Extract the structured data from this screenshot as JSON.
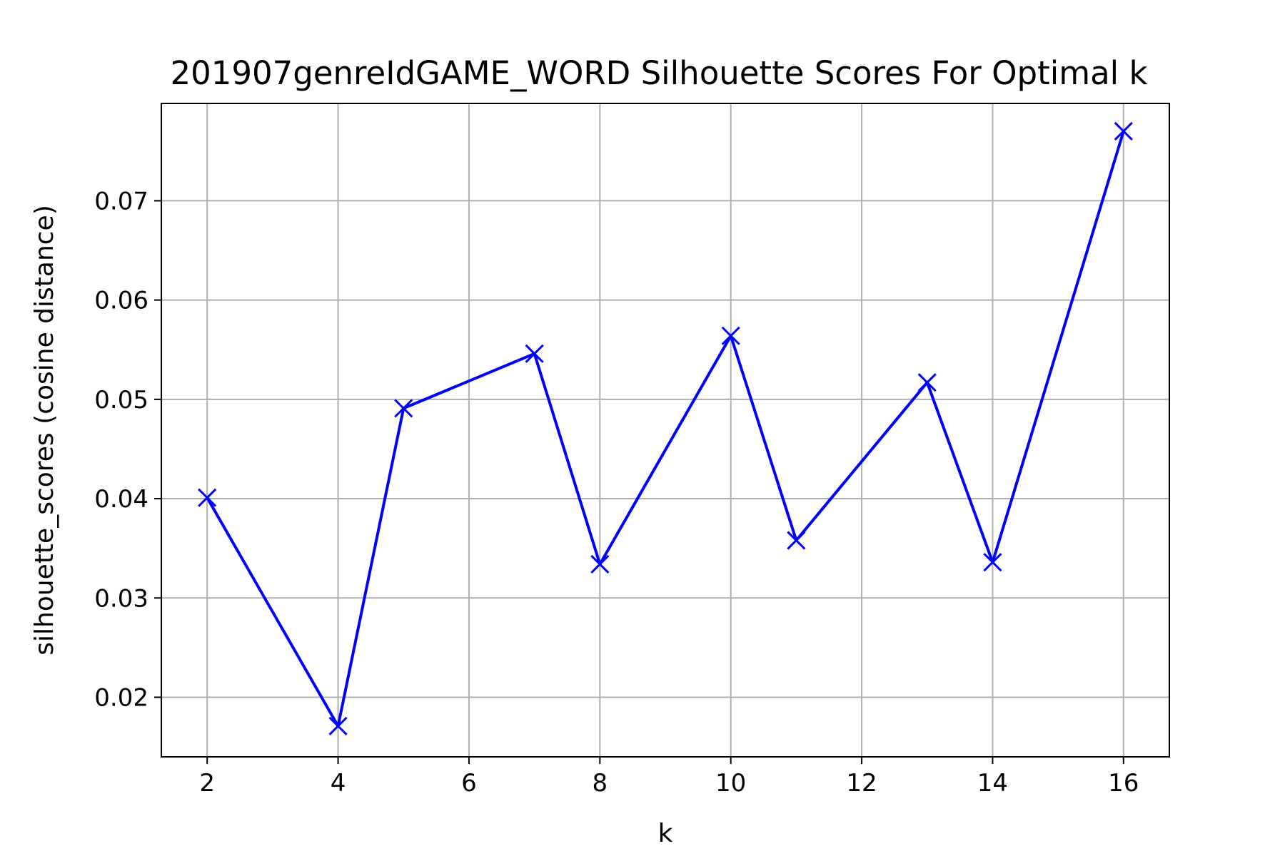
{
  "chart_data": {
    "type": "line",
    "title": "201907genreIdGAME_WORD Silhouette Scores For Optimal k",
    "xlabel": "k",
    "ylabel": "silhouette_scores (cosine distance)",
    "xlim": [
      1.3,
      16.7
    ],
    "ylim": [
      0.014,
      0.0798
    ],
    "xticks": [
      2,
      4,
      6,
      8,
      10,
      12,
      14,
      16
    ],
    "yticks": [
      0.02,
      0.03,
      0.04,
      0.05,
      0.06,
      0.07
    ],
    "xtick_labels": [
      "2",
      "4",
      "6",
      "8",
      "10",
      "12",
      "14",
      "16"
    ],
    "ytick_labels": [
      "0.02",
      "0.03",
      "0.04",
      "0.05",
      "0.06",
      "0.07"
    ],
    "grid": true,
    "series": [
      {
        "color": "#0000ff",
        "marker": "x",
        "x": [
          2,
          4,
          5,
          7,
          8,
          10,
          11,
          13,
          14,
          16
        ],
        "y": [
          0.0401,
          0.0171,
          0.0491,
          0.0546,
          0.0334,
          0.0564,
          0.0358,
          0.0517,
          0.0336,
          0.077
        ]
      }
    ]
  }
}
